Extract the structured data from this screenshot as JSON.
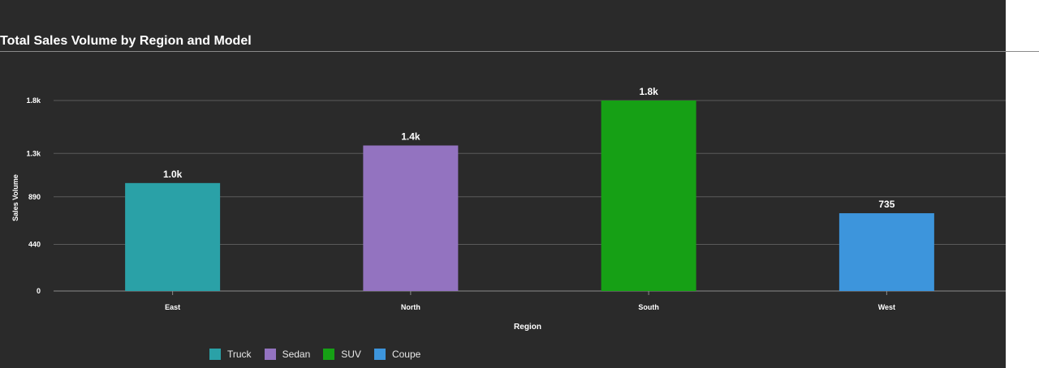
{
  "chart_data": {
    "type": "bar",
    "title": "Total Sales Volume by Region and Model",
    "xlabel": "Region",
    "ylabel": "Sales Volume",
    "categories": [
      "East",
      "North",
      "South",
      "West"
    ],
    "series": [
      {
        "name": "Truck",
        "color": "#2aa1a7",
        "values": [
          1020,
          null,
          null,
          null
        ],
        "labels": [
          "1.0k",
          null,
          null,
          null
        ]
      },
      {
        "name": "Sedan",
        "color": "#9373c0",
        "values": [
          null,
          1375,
          null,
          null
        ],
        "labels": [
          null,
          "1.4k",
          null,
          null
        ]
      },
      {
        "name": "SUV",
        "color": "#16a015",
        "values": [
          null,
          null,
          1800,
          null
        ],
        "labels": [
          null,
          null,
          "1.8k",
          null
        ]
      },
      {
        "name": "Coupe",
        "color": "#3d95dc",
        "values": [
          null,
          null,
          null,
          735
        ],
        "labels": [
          null,
          null,
          null,
          "735"
        ]
      }
    ],
    "yticks": [
      0,
      440,
      890,
      1300,
      1800
    ],
    "ytick_labels": [
      "0",
      "440",
      "890",
      "1.3k",
      "1.8k"
    ],
    "ylim": [
      0,
      1800
    ],
    "grid": true,
    "legend_placement": "bottom-left"
  }
}
